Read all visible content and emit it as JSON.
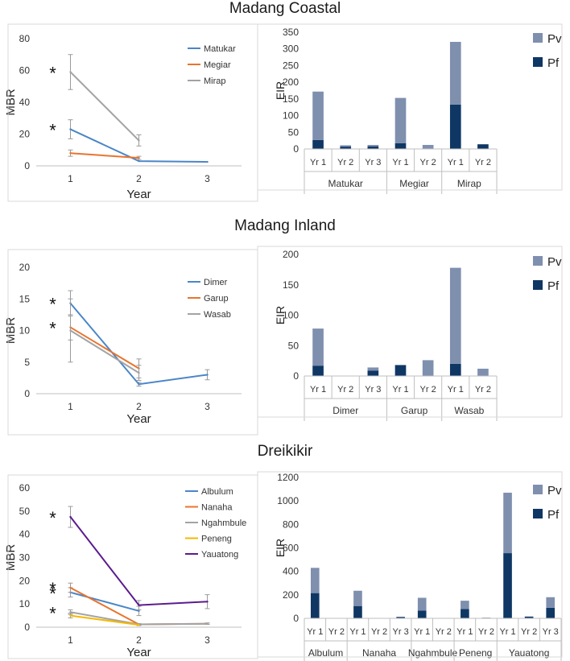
{
  "sections": [
    {
      "title": "Madang Coastal"
    },
    {
      "title": "Madang Inland"
    },
    {
      "title": "Dreikikir"
    }
  ],
  "chart_data": [
    {
      "id": "coastal-mbr",
      "type": "line",
      "section": "Madang Coastal",
      "xlabel": "Year",
      "ylabel": "MBR",
      "x": [
        1,
        2,
        3
      ],
      "xlim": [
        0.5,
        3.5
      ],
      "ylim": [
        0,
        80
      ],
      "yticks": [
        0,
        20,
        40,
        60,
        80
      ],
      "legend_position": "top-right",
      "series": [
        {
          "name": "Matukar",
          "color": "#4a86c8",
          "values": [
            23,
            3,
            2.5
          ],
          "errors": [
            6,
            0,
            0
          ],
          "star_on_first": true
        },
        {
          "name": "Megiar",
          "color": "#e8742f",
          "values": [
            8,
            5,
            null
          ],
          "errors": [
            2,
            1,
            0
          ],
          "star_on_first": false
        },
        {
          "name": "Mirap",
          "color": "#a3a3a3",
          "values": [
            59,
            16,
            null
          ],
          "errors": [
            11,
            3.5,
            0
          ],
          "star_on_first": true
        }
      ],
      "annotations": [
        "*",
        "*"
      ]
    },
    {
      "id": "coastal-eir",
      "type": "bar",
      "stacked": true,
      "section": "Madang Coastal",
      "ylabel": "EIR",
      "ylim": [
        0,
        350
      ],
      "yticks": [
        0,
        50,
        100,
        150,
        200,
        250,
        300,
        350
      ],
      "legend_position": "top-right",
      "stack_order": [
        "Pf",
        "Pv"
      ],
      "legend": [
        {
          "name": "Pv",
          "color": "#7f8fae"
        },
        {
          "name": "Pf",
          "color": "#0f3764"
        }
      ],
      "groups": [
        {
          "name": "Matukar",
          "bars": [
            {
              "label": "Yr 1",
              "Pf": 27,
              "Pv": 145
            },
            {
              "label": "Yr 2",
              "Pf": 7,
              "Pv": 4
            },
            {
              "label": "Yr 3",
              "Pf": 8,
              "Pv": 4
            }
          ]
        },
        {
          "name": "Megiar",
          "bars": [
            {
              "label": "Yr 1",
              "Pf": 17,
              "Pv": 136
            },
            {
              "label": "Yr 2",
              "Pf": 0,
              "Pv": 12
            }
          ]
        },
        {
          "name": "Mirap",
          "bars": [
            {
              "label": "Yr 1",
              "Pf": 133,
              "Pv": 188
            },
            {
              "label": "Yr 2",
              "Pf": 14,
              "Pv": 0
            }
          ]
        }
      ]
    },
    {
      "id": "inland-mbr",
      "type": "line",
      "section": "Madang Inland",
      "xlabel": "Year",
      "ylabel": "MBR",
      "x": [
        1,
        2,
        3
      ],
      "xlim": [
        0.5,
        3.5
      ],
      "ylim": [
        0,
        20
      ],
      "yticks": [
        0,
        5,
        10,
        15,
        20
      ],
      "legend_position": "top-right",
      "series": [
        {
          "name": "Dimer",
          "color": "#4a86c8",
          "values": [
            14.3,
            1.5,
            3
          ],
          "errors": [
            2,
            0.3,
            0.8
          ],
          "star_on_first": true
        },
        {
          "name": "Garup",
          "color": "#e8742f",
          "values": [
            10.5,
            4,
            null
          ],
          "errors": [
            2,
            1.5,
            0
          ],
          "star_on_first": true
        },
        {
          "name": "Wasab",
          "color": "#a3a3a3",
          "values": [
            10,
            3.3,
            null
          ],
          "errors": [
            5,
            1.2,
            0
          ],
          "star_on_first": false
        }
      ],
      "annotations": [
        "*",
        "*"
      ]
    },
    {
      "id": "inland-eir",
      "type": "bar",
      "stacked": true,
      "section": "Madang Inland",
      "ylabel": "EIR",
      "ylim": [
        0,
        200
      ],
      "yticks": [
        0,
        50,
        100,
        150,
        200
      ],
      "legend_position": "top-right",
      "stack_order": [
        "Pf",
        "Pv"
      ],
      "legend": [
        {
          "name": "Pv",
          "color": "#7f8fae"
        },
        {
          "name": "Pf",
          "color": "#0f3764"
        }
      ],
      "groups": [
        {
          "name": "Dimer",
          "bars": [
            {
              "label": "Yr 1",
              "Pf": 17,
              "Pv": 61
            },
            {
              "label": "Yr 2",
              "Pf": 0,
              "Pv": 0
            },
            {
              "label": "Yr 3",
              "Pf": 9,
              "Pv": 5
            }
          ]
        },
        {
          "name": "Garup",
          "bars": [
            {
              "label": "Yr 1",
              "Pf": 18,
              "Pv": 0
            },
            {
              "label": "Yr 2",
              "Pf": 0,
              "Pv": 26
            }
          ]
        },
        {
          "name": "Wasab",
          "bars": [
            {
              "label": "Yr 1",
              "Pf": 20,
              "Pv": 158
            },
            {
              "label": "Yr 2",
              "Pf": 0,
              "Pv": 12
            }
          ]
        }
      ]
    },
    {
      "id": "dreikikir-mbr",
      "type": "line",
      "section": "Dreikikir",
      "xlabel": "Year",
      "ylabel": "MBR",
      "x": [
        1,
        2,
        3
      ],
      "xlim": [
        0.5,
        3.5
      ],
      "ylim": [
        0,
        60
      ],
      "yticks": [
        0,
        10,
        20,
        30,
        40,
        50,
        60
      ],
      "legend_position": "top-right",
      "series": [
        {
          "name": "Albulum",
          "color": "#4a86c8",
          "values": [
            15,
            7,
            null
          ],
          "errors": [
            2,
            2,
            0
          ],
          "star_on_first": true
        },
        {
          "name": "Nanaha",
          "color": "#e8742f",
          "values": [
            17,
            1.2,
            1.5
          ],
          "errors": [
            2,
            0.3,
            0.3
          ],
          "star_on_first": true
        },
        {
          "name": "Ngahmbule",
          "color": "#a3a3a3",
          "values": [
            6.5,
            1.2,
            1.5
          ],
          "errors": [
            1,
            0.3,
            0.3
          ],
          "star_on_first": true
        },
        {
          "name": "Peneng",
          "color": "#f5b800",
          "values": [
            5,
            1,
            null
          ],
          "errors": [
            1,
            0.3,
            0
          ],
          "star_on_first": false
        },
        {
          "name": "Yauatong",
          "color": "#5b1b8f",
          "values": [
            47.5,
            9.5,
            11
          ],
          "errors": [
            4.5,
            2,
            3
          ],
          "star_on_first": true
        }
      ],
      "annotations": [
        "*",
        "*",
        "*",
        "*"
      ]
    },
    {
      "id": "dreikikir-eir",
      "type": "bar",
      "stacked": true,
      "section": "Dreikikir",
      "ylabel": "EIR",
      "ylim": [
        0,
        1200
      ],
      "yticks": [
        0,
        200,
        400,
        600,
        800,
        1000,
        1200
      ],
      "legend_position": "top-right",
      "stack_order": [
        "Pf",
        "Pv"
      ],
      "legend": [
        {
          "name": "Pv",
          "color": "#7f8fae"
        },
        {
          "name": "Pf",
          "color": "#0f3764"
        }
      ],
      "groups": [
        {
          "name": "Albulum",
          "bars": [
            {
              "label": "Yr 1",
              "Pf": 215,
              "Pv": 215
            },
            {
              "label": "Yr 2",
              "Pf": 0,
              "Pv": 0
            }
          ]
        },
        {
          "name": "Nanaha",
          "bars": [
            {
              "label": "Yr 1",
              "Pf": 105,
              "Pv": 130
            },
            {
              "label": "Yr 2",
              "Pf": 0,
              "Pv": 0
            },
            {
              "label": "Yr 3",
              "Pf": 12,
              "Pv": 0
            }
          ]
        },
        {
          "name": "Ngahmbule",
          "bars": [
            {
              "label": "Yr 1",
              "Pf": 65,
              "Pv": 110
            },
            {
              "label": "Yr 2",
              "Pf": 0,
              "Pv": 0
            }
          ]
        },
        {
          "name": "Peneng",
          "bars": [
            {
              "label": "Yr 1",
              "Pf": 80,
              "Pv": 70
            },
            {
              "label": "Yr 2",
              "Pf": 5,
              "Pv": 0
            }
          ]
        },
        {
          "name": "Yauatong",
          "bars": [
            {
              "label": "Yr 1",
              "Pf": 555,
              "Pv": 515
            },
            {
              "label": "Yr 2",
              "Pf": 15,
              "Pv": 0
            },
            {
              "label": "Yr 3",
              "Pf": 90,
              "Pv": 90
            }
          ]
        }
      ]
    }
  ]
}
